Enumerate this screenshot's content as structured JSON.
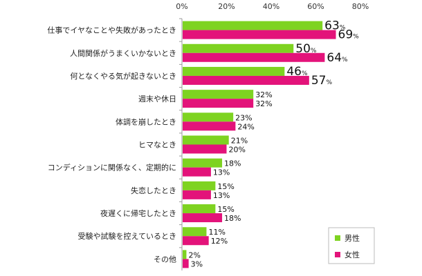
{
  "chart_data": {
    "type": "bar",
    "orientation": "horizontal",
    "categories": [
      "仕事でイヤなことや失敗があったとき",
      "人間関係がうまくいかないとき",
      "何となくやる気が起きないとき",
      "週末や休日",
      "体調を崩したとき",
      "ヒマなとき",
      "コンディションに関係なく、定期的に",
      "失恋したとき",
      "夜遅くに帰宅したとき",
      "受験や試験を控えているとき",
      "その他"
    ],
    "series": [
      {
        "name": "男性",
        "color": "#7ed321",
        "values": [
          63,
          50,
          46,
          32,
          23,
          21,
          18,
          15,
          15,
          11,
          2
        ]
      },
      {
        "name": "女性",
        "color": "#e3137a",
        "values": [
          69,
          64,
          57,
          32,
          24,
          20,
          13,
          13,
          18,
          12,
          3
        ]
      }
    ],
    "x_ticks": [
      "0%",
      "20%",
      "40%",
      "60%",
      "80%"
    ],
    "xlim": [
      0,
      80
    ],
    "value_suffix": "%",
    "grid": false,
    "legend_position": "bottom-right"
  }
}
